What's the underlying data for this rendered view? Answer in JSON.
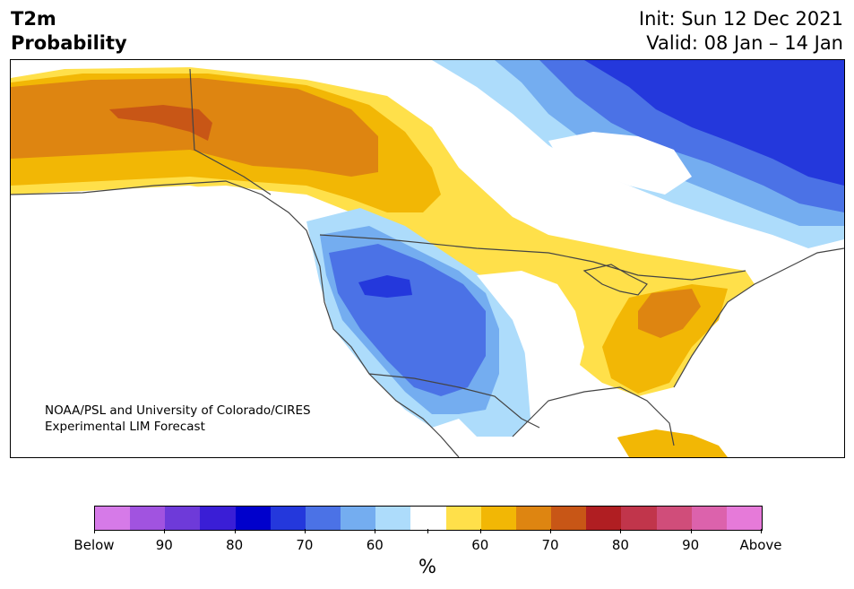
{
  "header": {
    "title_line1": "T2m",
    "title_line2": "Probability",
    "init": "Init: Sun 12 Dec 2021",
    "valid": "Valid: 08 Jan – 14 Jan"
  },
  "credit": {
    "line1": "NOAA/PSL and University of Colorado/CIRES",
    "line2": "Experimental LIM Forecast"
  },
  "legend": {
    "unit": "%",
    "colors": [
      "#d67ae8",
      "#a153e0",
      "#6e3ad9",
      "#3a1ed6",
      "#0000cc",
      "#2438dc",
      "#4b72e6",
      "#74adf0",
      "#addcfb",
      "#ffffff",
      "#ffe04a",
      "#f2b705",
      "#de8511",
      "#c85616",
      "#b01e22",
      "#c1354b",
      "#d04d7a",
      "#dc62ac",
      "#e67ad9"
    ],
    "tick_labels": [
      "Below",
      "90",
      "80",
      "70",
      "60",
      "",
      "60",
      "70",
      "80",
      "90",
      "Above"
    ]
  },
  "map_colors": {
    "warm_light": "#ffe04a",
    "warm_mid": "#f2b705",
    "warm_deep": "#de8511",
    "warm_core": "#c85616",
    "cold_light": "#addcfb",
    "cold_mid": "#74adf0",
    "cold_deep": "#4b72e6",
    "cold_strong": "#2438dc",
    "land": "#ffffff",
    "boundaries": "#444444"
  }
}
